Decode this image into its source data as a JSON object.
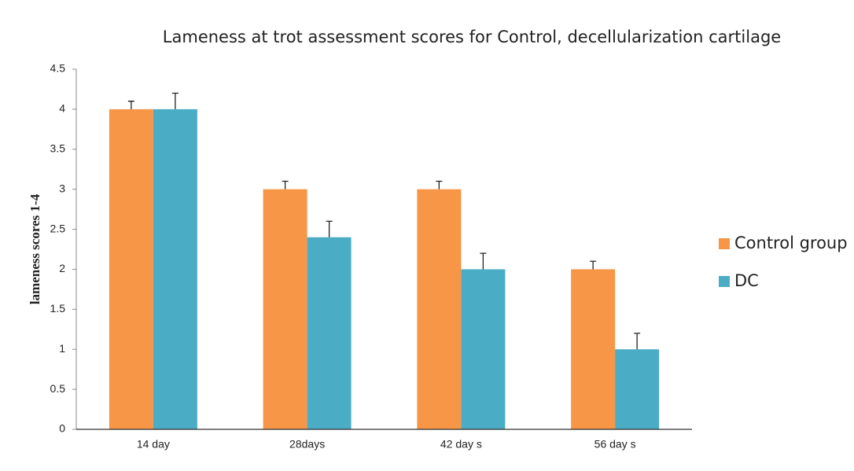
{
  "chart_data": {
    "type": "bar",
    "title": "Lameness at trot assessment scores for Control, decellularization cartilage",
    "y_label": "lameness scores 1-4",
    "categories": [
      "14 day",
      "28days",
      "42 day s",
      "56 day s"
    ],
    "series": [
      {
        "name": "Control group",
        "color": "#f79646",
        "values": [
          4,
          3,
          3,
          2
        ],
        "errors": [
          0.1,
          0.1,
          0.1,
          0.1
        ]
      },
      {
        "name": "DC",
        "color": "#4bacc6",
        "values": [
          4,
          2.4,
          2,
          1
        ],
        "errors": [
          0.2,
          0.2,
          0.2,
          0.2
        ]
      }
    ],
    "ylim": [
      0,
      4.5
    ],
    "yticks": [
      0,
      0.5,
      1,
      1.5,
      2,
      2.5,
      3,
      3.5,
      4,
      4.5
    ],
    "legend": "right"
  }
}
